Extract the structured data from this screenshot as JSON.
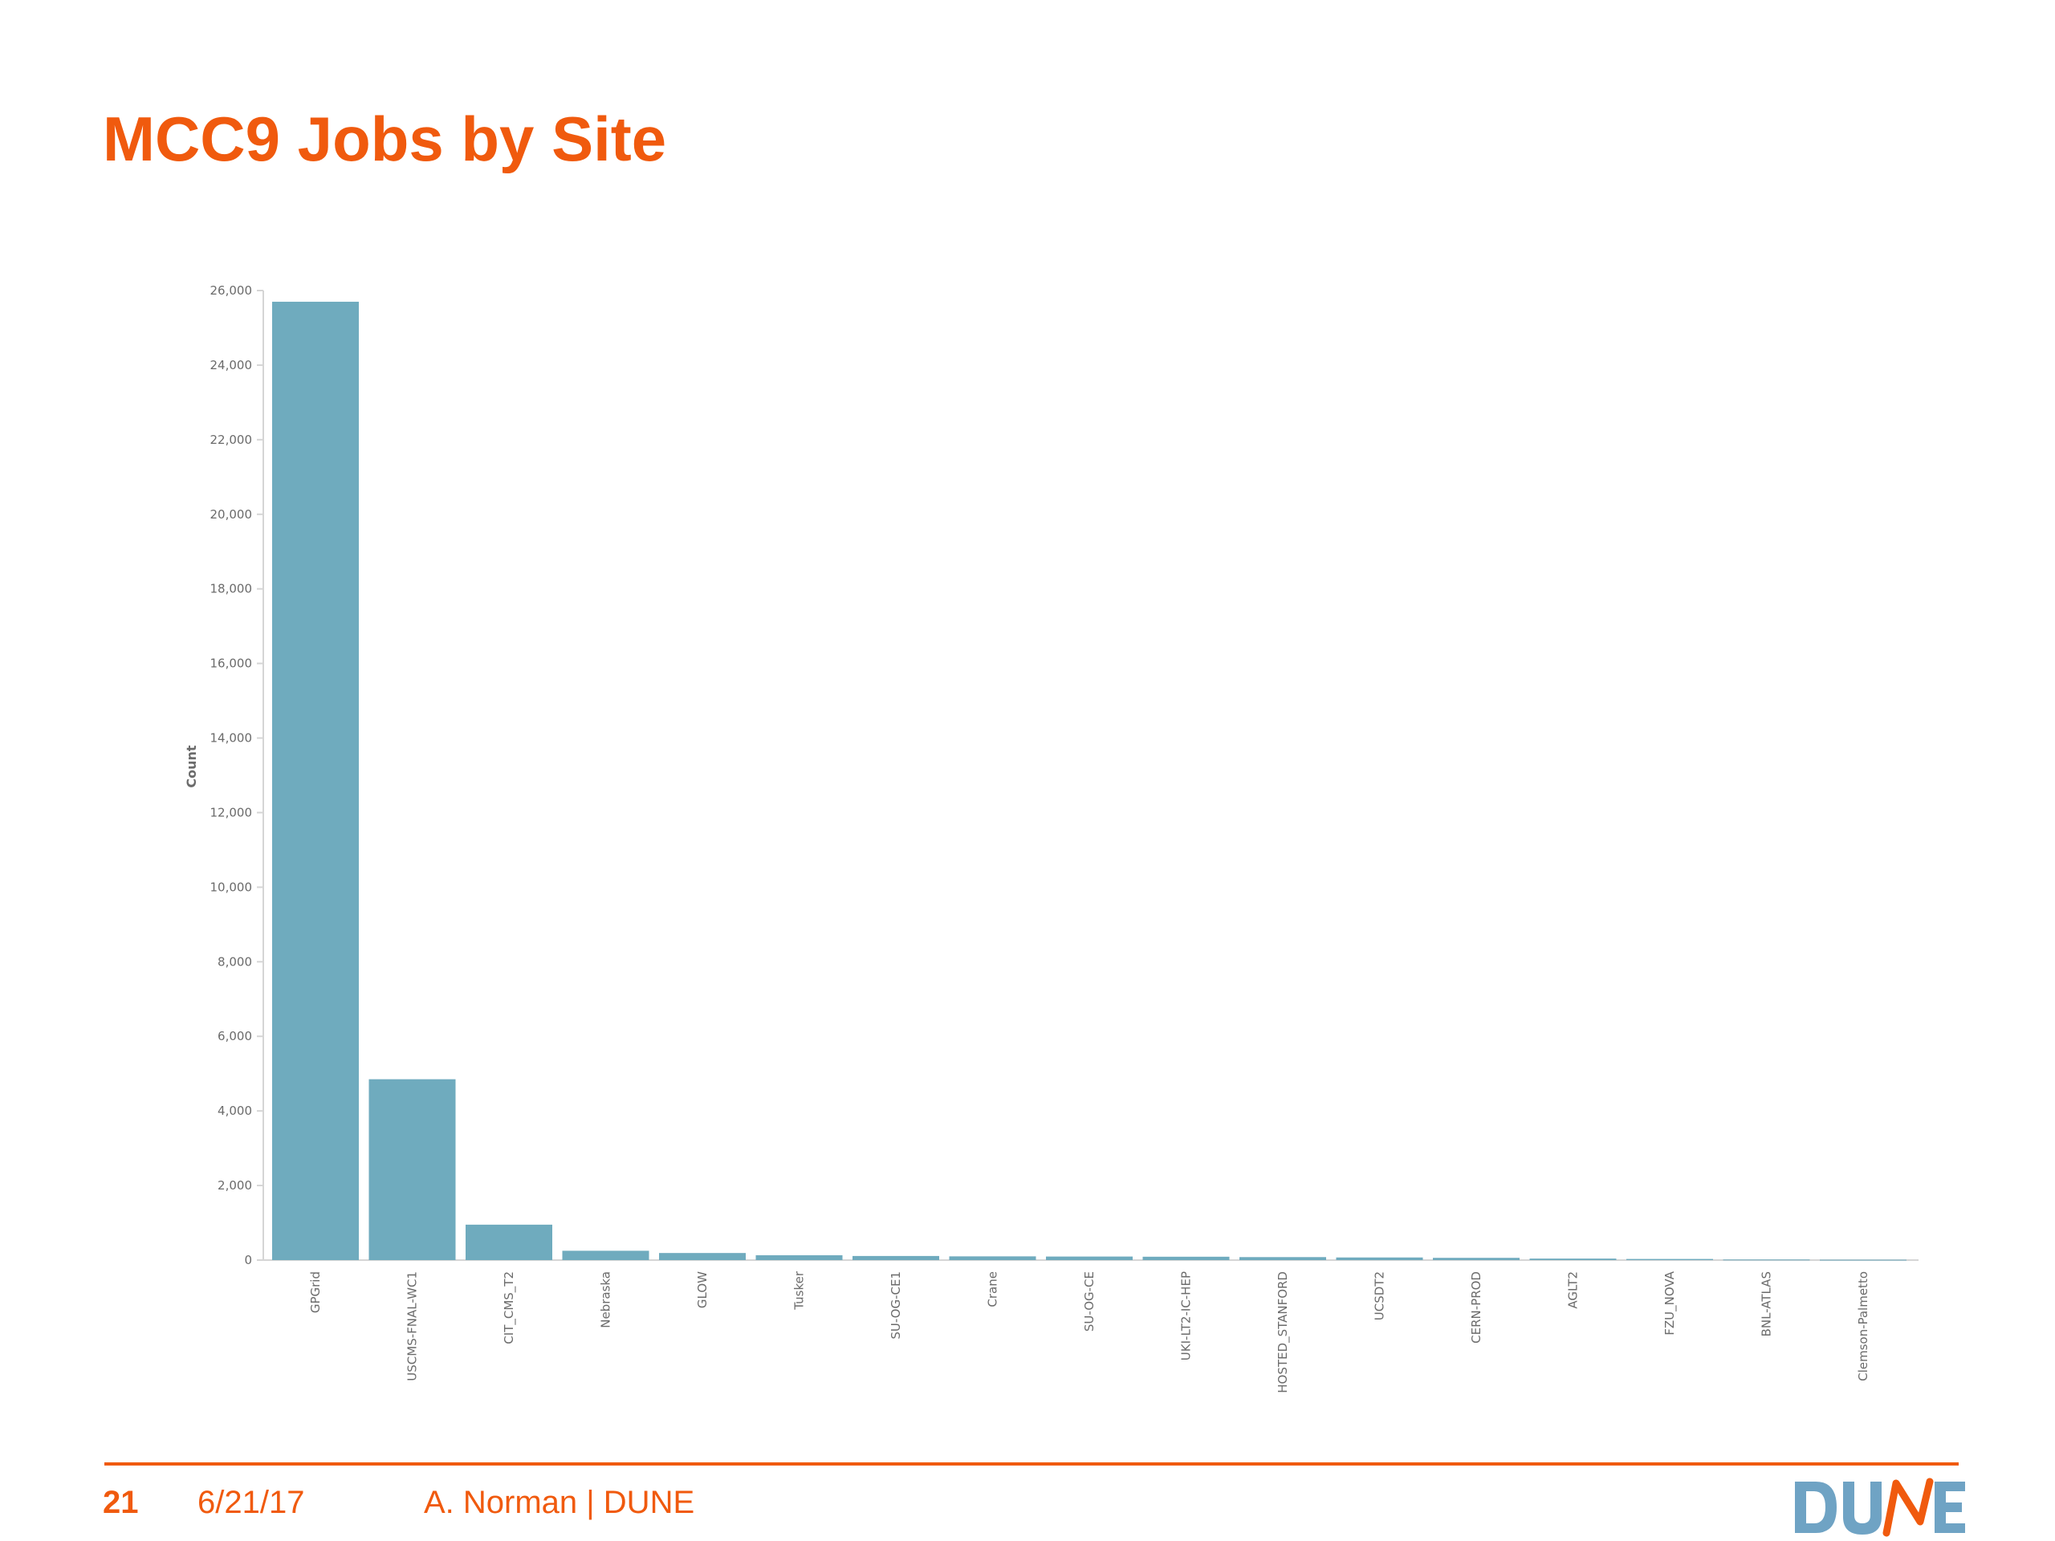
{
  "slide": {
    "title": "MCC9 Jobs by Site",
    "page_number": "21",
    "date": "6/21/17",
    "author": "A. Norman | DUNE",
    "logo_text": "DUNE"
  },
  "colors": {
    "accent": "#f05a0e",
    "bar": "#6fabbe",
    "logo_blue": "#6fa3c4"
  },
  "chart_data": {
    "type": "bar",
    "ylabel": "Count",
    "xlabel": "",
    "ylim": [
      0,
      26000
    ],
    "yticks": [
      "0",
      "2,000",
      "4,000",
      "6,000",
      "8,000",
      "10,000",
      "12,000",
      "14,000",
      "16,000",
      "18,000",
      "20,000",
      "22,000",
      "24,000",
      "26,000"
    ],
    "ytick_values": [
      0,
      2000,
      4000,
      6000,
      8000,
      10000,
      12000,
      14000,
      16000,
      18000,
      20000,
      22000,
      24000,
      26000
    ],
    "categories": [
      "GPGrid",
      "USCMS-FNAL-WC1",
      "CIT_CMS_T2",
      "Nebraska",
      "GLOW",
      "Tusker",
      "SU-OG-CE1",
      "Crane",
      "SU-OG-CE",
      "UKI-LT2-IC-HEP",
      "HOSTED_STANFORD",
      "UCSDT2",
      "CERN-PROD",
      "AGLT2",
      "FZU_NOVA",
      "BNL-ATLAS",
      "Clemson-Palmetto"
    ],
    "values": [
      25700,
      4850,
      950,
      250,
      190,
      130,
      110,
      100,
      95,
      90,
      80,
      70,
      60,
      40,
      30,
      15,
      10
    ],
    "grid": false,
    "legend": "none"
  }
}
